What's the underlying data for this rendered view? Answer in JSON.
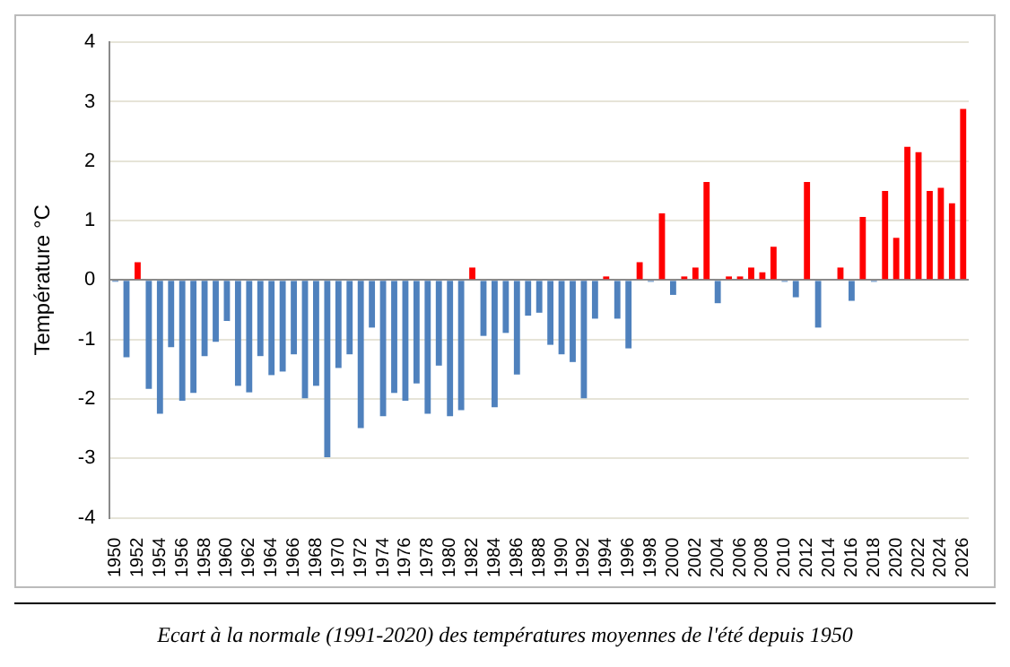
{
  "chart_data": {
    "type": "bar",
    "ylabel": "Température °C",
    "categories": [
      "1950",
      null,
      "1952",
      null,
      "1954",
      null,
      "1956",
      null,
      "1958",
      null,
      "1960",
      null,
      "1962",
      null,
      "1964",
      null,
      "1966",
      null,
      "1968",
      null,
      "1970",
      null,
      "1972",
      null,
      "1974",
      null,
      "1976",
      null,
      "1978",
      null,
      "1980",
      null,
      "1982",
      null,
      "1984",
      null,
      "1986",
      null,
      "1988",
      null,
      "1990",
      null,
      "1992",
      null,
      "1994",
      null,
      "1996",
      null,
      "1998",
      null,
      "2000",
      null,
      "2002",
      null,
      "2004",
      null,
      "2006",
      null,
      "2008",
      null,
      "2010",
      null,
      "2012",
      null,
      "2014",
      null,
      "2016",
      null,
      "2018",
      null,
      "2020",
      null,
      "2022",
      null,
      "2024",
      null,
      "2026"
    ],
    "values": [
      -0.03,
      -1.3,
      0.3,
      -1.83,
      -2.25,
      -1.13,
      -2.03,
      -1.9,
      -1.28,
      -1.04,
      -0.69,
      -1.78,
      -1.89,
      -1.28,
      -1.6,
      -1.54,
      -1.25,
      -1.99,
      -1.78,
      -2.98,
      -1.48,
      -1.25,
      -2.49,
      -0.8,
      -2.29,
      -1.9,
      -2.03,
      -1.74,
      -2.25,
      -1.44,
      -2.29,
      -2.19,
      0.21,
      -0.94,
      -2.14,
      -0.89,
      -1.59,
      -0.6,
      -0.55,
      -1.09,
      -1.25,
      -1.38,
      -1.99,
      -0.65,
      0.06,
      -0.65,
      -1.15,
      0.3,
      -0.03,
      1.12,
      -0.25,
      0.06,
      0.21,
      1.65,
      -0.39,
      0.06,
      0.06,
      0.21,
      0.13,
      0.56,
      -0.03,
      -0.29,
      1.65,
      -0.8,
      0,
      0.21,
      -0.35,
      1.06,
      -0.03,
      1.5,
      0.71,
      2.24,
      2.15,
      1.5,
      1.55,
      1.29,
      2.88
    ],
    "colors": [
      "#4f81bd",
      "#4f81bd",
      "#ff0000",
      "#4f81bd",
      "#4f81bd",
      "#4f81bd",
      "#4f81bd",
      "#4f81bd",
      "#4f81bd",
      "#4f81bd",
      "#4f81bd",
      "#4f81bd",
      "#4f81bd",
      "#4f81bd",
      "#4f81bd",
      "#4f81bd",
      "#4f81bd",
      "#4f81bd",
      "#4f81bd",
      "#4f81bd",
      "#4f81bd",
      "#4f81bd",
      "#4f81bd",
      "#4f81bd",
      "#4f81bd",
      "#4f81bd",
      "#4f81bd",
      "#4f81bd",
      "#4f81bd",
      "#4f81bd",
      "#4f81bd",
      "#4f81bd",
      "#ff0000",
      "#4f81bd",
      "#4f81bd",
      "#4f81bd",
      "#4f81bd",
      "#4f81bd",
      "#4f81bd",
      "#4f81bd",
      "#4f81bd",
      "#4f81bd",
      "#4f81bd",
      "#4f81bd",
      "#ff0000",
      "#4f81bd",
      "#4f81bd",
      "#ff0000",
      "#4f81bd",
      "#ff0000",
      "#4f81bd",
      "#ff0000",
      "#ff0000",
      "#ff0000",
      "#4f81bd",
      "#ff0000",
      "#ff0000",
      "#ff0000",
      "#ff0000",
      "#ff0000",
      "#4f81bd",
      "#4f81bd",
      "#ff0000",
      "#4f81bd",
      "#ff0000",
      "#ff0000",
      "#4f81bd",
      "#ff0000",
      "#4f81bd",
      "#ff0000",
      "#ff0000",
      "#ff0000",
      "#ff0000",
      "#ff0000",
      "#ff0000",
      "#ff0000",
      "#ff0000"
    ],
    "ylim": [
      -4,
      4
    ],
    "yticks": [
      -4,
      -3,
      -2,
      -1,
      0,
      1,
      2,
      3,
      4
    ],
    "grid": "y",
    "annotations": [
      "Ecart à la normale (1991-2020) des températures moyennes de l'été depuis 1950"
    ]
  }
}
